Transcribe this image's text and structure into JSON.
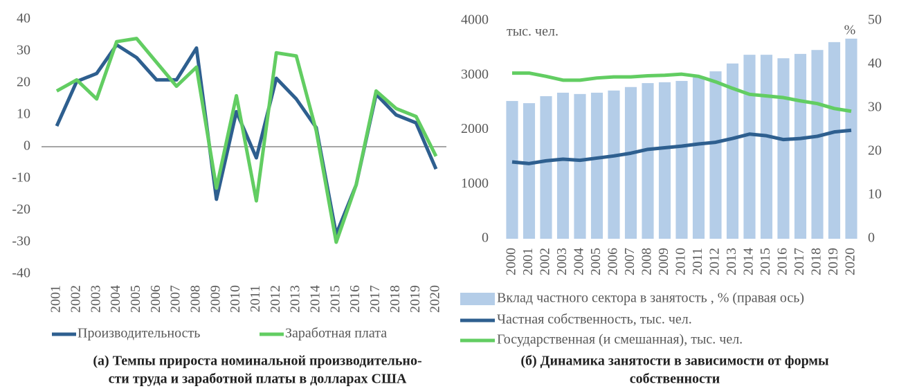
{
  "chart_data": [
    {
      "type": "line",
      "caption": [
        "(а) Темпы прироста номинальной производительно-",
        "сти труда и заработной платы в долларах США"
      ],
      "categories": [
        "2001",
        "2002",
        "2003",
        "2004",
        "2005",
        "2006",
        "2007",
        "2008",
        "2009",
        "2010",
        "2011",
        "2012",
        "2013",
        "2014",
        "2015",
        "2016",
        "2017",
        "2018",
        "2019",
        "2020"
      ],
      "series": [
        {
          "name": "Производительность",
          "color": "#2e5f8f",
          "values": [
            6.5,
            20.5,
            23,
            32,
            28,
            21,
            21,
            31,
            -16.5,
            11,
            -3.5,
            21.5,
            15,
            6,
            -27.5,
            -12,
            16.5,
            10,
            7.5,
            -7
          ]
        },
        {
          "name": "Заработная плата",
          "color": "#62cd62",
          "values": [
            17.5,
            21,
            15,
            33,
            34,
            26.5,
            19,
            25,
            -13,
            16,
            -17,
            29.5,
            28.5,
            5,
            -30,
            -12,
            17.5,
            12,
            9.5,
            -3
          ]
        }
      ],
      "ylim": [
        -40,
        40
      ],
      "yticks": [
        -40,
        -30,
        -20,
        -10,
        0,
        10,
        20,
        30,
        40
      ],
      "zero_line": true
    },
    {
      "type": "combo",
      "caption": [
        "(б) Динамика занятости в зависимости от формы",
        "собственности"
      ],
      "ylabel": "тыс. чел.",
      "y2label": "%",
      "categories": [
        "2000",
        "2001",
        "2002",
        "2003",
        "2004",
        "2005",
        "2006",
        "2007",
        "2008",
        "2009",
        "2010",
        "2011",
        "2012",
        "2013",
        "2014",
        "2015",
        "2016",
        "2017",
        "2018",
        "2019",
        "2020"
      ],
      "series": [
        {
          "name": "Вклад частного сектора в занятость , % (правая ось)",
          "kind": "bar",
          "axis": "y2",
          "color": "#b4cde8",
          "values": [
            31.6,
            31.1,
            32.7,
            33.5,
            33.2,
            33.5,
            34,
            34.8,
            35.7,
            35.9,
            36.2,
            37,
            38.4,
            40.2,
            42.2,
            42.2,
            41.4,
            42.4,
            43.3,
            45.1,
            45.9
          ]
        },
        {
          "name": "Частная собственность, тыс. чел.",
          "kind": "line",
          "color": "#2e5f8f",
          "values": [
            1410,
            1380,
            1430,
            1460,
            1440,
            1480,
            1520,
            1570,
            1640,
            1670,
            1700,
            1740,
            1770,
            1840,
            1920,
            1890,
            1820,
            1840,
            1880,
            1960,
            1990
          ]
        },
        {
          "name": "Государственная (и смешанная), тыс. чел.",
          "kind": "line",
          "color": "#62cd62",
          "values": [
            3040,
            3040,
            2980,
            2910,
            2910,
            2950,
            2970,
            2970,
            2990,
            3000,
            3020,
            2980,
            2880,
            2760,
            2650,
            2620,
            2590,
            2530,
            2480,
            2390,
            2340
          ]
        }
      ],
      "ylim": [
        0,
        4000
      ],
      "yticks": [
        0,
        1000,
        2000,
        3000,
        4000
      ],
      "y2lim": [
        0,
        50
      ],
      "y2ticks": [
        0,
        10,
        20,
        30,
        40,
        50
      ]
    }
  ]
}
